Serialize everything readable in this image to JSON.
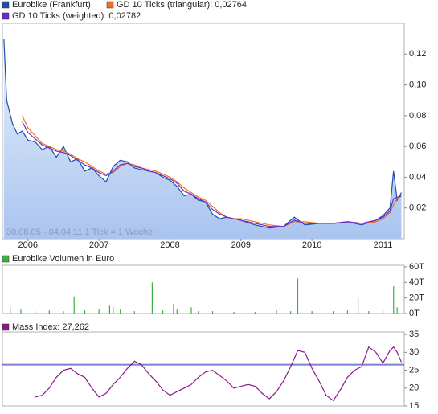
{
  "chart_data": [
    {
      "type": "line",
      "annotation": "30.08.05 - 04.04.11   1 Tick = 1 Woche",
      "x": [
        2005.66,
        2005.7,
        2005.78,
        2005.85,
        2005.92,
        2006.0,
        2006.1,
        2006.2,
        2006.3,
        2006.4,
        2006.5,
        2006.6,
        2006.7,
        2006.8,
        2006.9,
        2007.0,
        2007.1,
        2007.2,
        2007.3,
        2007.4,
        2007.5,
        2007.6,
        2007.7,
        2007.8,
        2007.9,
        2008.0,
        2008.1,
        2008.2,
        2008.3,
        2008.4,
        2008.5,
        2008.6,
        2008.7,
        2008.8,
        2008.9,
        2009.0,
        2009.2,
        2009.4,
        2009.6,
        2009.75,
        2009.9,
        2010.1,
        2010.3,
        2010.5,
        2010.7,
        2010.9,
        2011.0,
        2011.1,
        2011.15,
        2011.2,
        2011.26
      ],
      "series": [
        {
          "name": "Eurobike (Frankfurt)",
          "color": "#1f4fa8",
          "area": true,
          "values": [
            0.13,
            0.09,
            0.075,
            0.068,
            0.07,
            0.064,
            0.063,
            0.058,
            0.06,
            0.053,
            0.06,
            0.05,
            0.052,
            0.044,
            0.046,
            0.041,
            0.037,
            0.047,
            0.051,
            0.05,
            0.046,
            0.045,
            0.044,
            0.043,
            0.04,
            0.038,
            0.034,
            0.028,
            0.029,
            0.025,
            0.024,
            0.016,
            0.013,
            0.014,
            0.013,
            0.012,
            0.009,
            0.007,
            0.008,
            0.014,
            0.009,
            0.01,
            0.01,
            0.011,
            0.009,
            0.012,
            0.015,
            0.02,
            0.044,
            0.025,
            0.03
          ]
        },
        {
          "name": "GD 10 Ticks (triangular): 0,02764",
          "color": "#f07020",
          "values": [
            null,
            null,
            null,
            null,
            0.08,
            0.072,
            0.067,
            0.062,
            0.06,
            0.058,
            0.057,
            0.055,
            0.052,
            0.05,
            0.047,
            0.044,
            0.042,
            0.043,
            0.047,
            0.049,
            0.048,
            0.046,
            0.045,
            0.044,
            0.042,
            0.04,
            0.037,
            0.033,
            0.03,
            0.027,
            0.025,
            0.021,
            0.017,
            0.014,
            0.013,
            0.013,
            0.011,
            0.009,
            0.008,
            0.011,
            0.011,
            0.01,
            0.01,
            0.011,
            0.01,
            0.011,
            0.013,
            0.017,
            0.022,
            0.026,
            0.02764
          ]
        },
        {
          "name": "GD 10 Ticks (weighted): 0,02782",
          "color": "#6a2ad0",
          "values": [
            null,
            null,
            null,
            null,
            0.076,
            0.069,
            0.065,
            0.061,
            0.059,
            0.057,
            0.056,
            0.054,
            0.051,
            0.048,
            0.046,
            0.043,
            0.041,
            0.044,
            0.048,
            0.049,
            0.047,
            0.046,
            0.044,
            0.043,
            0.041,
            0.039,
            0.036,
            0.031,
            0.029,
            0.026,
            0.024,
            0.019,
            0.016,
            0.014,
            0.013,
            0.012,
            0.01,
            0.008,
            0.008,
            0.012,
            0.01,
            0.01,
            0.01,
            0.011,
            0.01,
            0.012,
            0.014,
            0.018,
            0.026,
            0.027,
            0.02782
          ]
        }
      ],
      "xlim": [
        2005.64,
        2011.3
      ],
      "xticks": [
        2006,
        2007,
        2008,
        2009,
        2010,
        2011
      ],
      "ylim": [
        0,
        0.14
      ],
      "yticks": [
        {
          "value": 0.02,
          "label": "0,02"
        },
        {
          "value": 0.04,
          "label": "0,04"
        },
        {
          "value": 0.06,
          "label": "0,06"
        },
        {
          "value": 0.08,
          "label": "0,08"
        },
        {
          "value": 0.1,
          "label": "0,10"
        },
        {
          "value": 0.12,
          "label": "0,12"
        }
      ]
    },
    {
      "type": "bar",
      "x": [
        2005.75,
        2005.9,
        2006.1,
        2006.3,
        2006.5,
        2006.65,
        2006.8,
        2007.0,
        2007.15,
        2007.2,
        2007.3,
        2007.5,
        2007.75,
        2007.9,
        2008.05,
        2008.1,
        2008.3,
        2008.4,
        2008.6,
        2008.9,
        2009.2,
        2009.5,
        2009.7,
        2009.8,
        2010.0,
        2010.3,
        2010.5,
        2010.65,
        2010.8,
        2011.0,
        2011.15,
        2011.2
      ],
      "series": [
        {
          "name": "Eurobike Volumen in Euro",
          "color": "#3cb043",
          "values": [
            8,
            5,
            3,
            4,
            3,
            22,
            4,
            6,
            10,
            8,
            5,
            3,
            40,
            4,
            12,
            5,
            8,
            3,
            3,
            2,
            2,
            4,
            3,
            45,
            3,
            3,
            4,
            20,
            3,
            4,
            35,
            8
          ]
        }
      ],
      "xlim": [
        2005.64,
        2011.3
      ],
      "ylim": [
        0,
        62
      ],
      "yticks": [
        {
          "value": 0,
          "label": "0T"
        },
        {
          "value": 20,
          "label": "20T"
        },
        {
          "value": 40,
          "label": "40T"
        },
        {
          "value": 60,
          "label": "60T"
        }
      ]
    },
    {
      "type": "line",
      "x": [
        2006.1,
        2006.2,
        2006.3,
        2006.4,
        2006.5,
        2006.6,
        2006.7,
        2006.8,
        2006.9,
        2007.0,
        2007.1,
        2007.2,
        2007.3,
        2007.4,
        2007.5,
        2007.6,
        2007.7,
        2007.8,
        2007.9,
        2008.0,
        2008.1,
        2008.2,
        2008.3,
        2008.4,
        2008.5,
        2008.6,
        2008.7,
        2008.8,
        2008.9,
        2009.0,
        2009.1,
        2009.2,
        2009.3,
        2009.4,
        2009.5,
        2009.6,
        2009.7,
        2009.8,
        2009.9,
        2010.0,
        2010.1,
        2010.2,
        2010.3,
        2010.4,
        2010.5,
        2010.6,
        2010.7,
        2010.8,
        2010.9,
        2011.0,
        2011.1,
        2011.15,
        2011.2,
        2011.26
      ],
      "series": [
        {
          "name": "Mass Index: 27,262",
          "color": "#8a1a8a",
          "values": [
            17.5,
            18,
            20,
            23,
            25,
            25.5,
            24,
            23,
            20,
            17.5,
            18.5,
            21,
            23,
            25.5,
            27.5,
            26.5,
            24,
            22,
            19.5,
            18,
            19,
            20,
            21,
            23,
            24.5,
            25,
            23.5,
            22,
            20,
            20.5,
            21,
            20.5,
            18.5,
            17,
            19,
            22,
            26,
            30.5,
            30,
            25.5,
            22,
            18,
            16.5,
            19.5,
            23,
            25,
            26,
            31.5,
            30,
            27,
            30.5,
            31.5,
            30,
            27.262
          ]
        }
      ],
      "ref_lines": [
        {
          "value": 27,
          "color": "#cc3333"
        },
        {
          "value": 26.5,
          "color": "#5555cc"
        }
      ],
      "xlim": [
        2005.64,
        2011.3
      ],
      "ylim": [
        15,
        35.7
      ],
      "yticks": [
        15,
        20,
        25,
        30,
        35
      ]
    }
  ]
}
